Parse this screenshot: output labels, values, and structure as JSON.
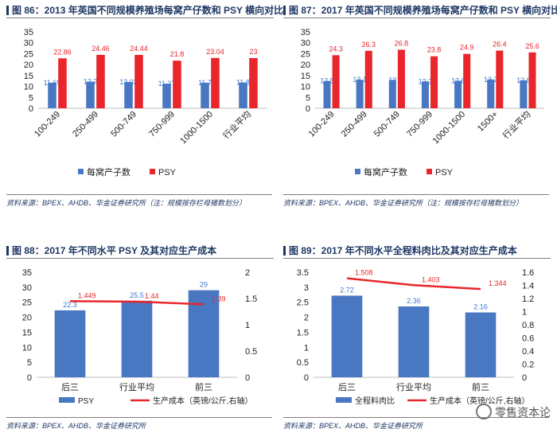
{
  "colors": {
    "blue": "#4a77c2",
    "red": "#e8262b",
    "title": "#1f3864",
    "pct_blue": "#3a7ad1"
  },
  "watermark": {
    "text": "零售资本论",
    "icon": "wechat-icon"
  },
  "panels": [
    {
      "title": "图 86：2013 年英国不同规模养殖场每窝产仔数和 PSY 横向对比",
      "source": "资料来源：BPEX、AHDB、华金证券研究所（注：规模按存栏母猪数划分）"
    },
    {
      "title": "图 87：2017 年英国不同规模养殖场每窝产仔数和 PSY 横向对比",
      "source": "资料来源：BPEX、AHDB、华金证券研究所（注：规模按存栏母猪数划分）"
    },
    {
      "title": "图 88：2017 年不同水平 PSY 及其对应生产成本",
      "source": "资料来源：BPEX、AHDB、华金证券研究所"
    },
    {
      "title": "图 89：2017 年不同水平全程料肉比及其对应生产成本",
      "source": "资料来源：BPEX、AHDB、华金证券研究所"
    }
  ],
  "chart_data": [
    {
      "type": "bar",
      "categories": [
        "100-249",
        "250-499",
        "500-749",
        "750-999",
        "1000-1500",
        "行业平均"
      ],
      "series": [
        {
          "name": "每窝产子数",
          "values": [
            11.69,
            12.2,
            12.02,
            11.27,
            11.7,
            11.8
          ],
          "labels": [
            "11.69",
            "12.2",
            "12.02",
            "11.27",
            "11.7",
            "11.8"
          ],
          "color": "#4a77c2"
        },
        {
          "name": "PSY",
          "values": [
            22.86,
            24.46,
            24.44,
            21.8,
            23.04,
            23
          ],
          "labels": [
            "22.86",
            "24.46",
            "24.44",
            "21.8",
            "23.04",
            "23"
          ],
          "color": "#e8262b"
        }
      ],
      "y_ticks": [
        "0",
        "5",
        "10",
        "15",
        "20",
        "25",
        "30",
        "35"
      ],
      "ylim": [
        0,
        35
      ],
      "legend": "bottom",
      "grid": false
    },
    {
      "type": "bar",
      "categories": [
        "100-249",
        "250-499",
        "500-749",
        "750-999",
        "1000-1500",
        "1500+",
        "行业平均"
      ],
      "series": [
        {
          "name": "每窝产子数",
          "values": [
            12.5,
            13.1,
            13,
            12.3,
            12.6,
            13.2,
            12.8
          ],
          "labels": [
            "12.5",
            "13.1",
            "13",
            "12.3",
            "12.6",
            "13.2",
            "12.8"
          ],
          "color": "#4a77c2"
        },
        {
          "name": "PSY",
          "values": [
            24.3,
            26.3,
            26.8,
            23.8,
            24.9,
            26.4,
            25.6
          ],
          "labels": [
            "24.3",
            "26.3",
            "26.8",
            "23.8",
            "24.9",
            "26.4",
            "25.6"
          ],
          "color": "#e8262b"
        }
      ],
      "y_ticks": [
        "0",
        "5",
        "10",
        "15",
        "20",
        "25",
        "30",
        "35"
      ],
      "ylim": [
        0,
        35
      ],
      "legend": "bottom",
      "grid": false
    },
    {
      "type": "bar",
      "categories": [
        "后三",
        "行业平均",
        "前三"
      ],
      "series": [
        {
          "name": "PSY",
          "kind": "bar",
          "axis": "left",
          "values": [
            22.3,
            25.5,
            29
          ],
          "labels": [
            "22.3",
            "25.5",
            "29"
          ],
          "color": "#4a77c2"
        },
        {
          "name": "生产成本（英镑/公斤,右轴）",
          "kind": "line",
          "axis": "right",
          "values": [
            1.449,
            1.44,
            1.39
          ],
          "labels": [
            "1.449",
            "1.44",
            "1.39"
          ],
          "color": "#e8262b"
        }
      ],
      "y_ticks": [
        "0",
        "5",
        "10",
        "15",
        "20",
        "25",
        "30",
        "35"
      ],
      "y2_ticks": [
        "0",
        "0.5",
        "1",
        "1.5",
        "2"
      ],
      "ylim": [
        0,
        35
      ],
      "y2lim": [
        0,
        2
      ],
      "legend": "bottom",
      "grid": false
    },
    {
      "type": "bar",
      "categories": [
        "后三",
        "行业平均",
        "前三"
      ],
      "series": [
        {
          "name": "全程料肉比",
          "kind": "bar",
          "axis": "left",
          "values": [
            2.72,
            2.36,
            2.16
          ],
          "labels": [
            "2.72",
            "2.36",
            "2.16"
          ],
          "color": "#4a77c2"
        },
        {
          "name": "生产成本（英镑/公斤,右轴）",
          "kind": "line",
          "axis": "right",
          "values": [
            1.508,
            1.403,
            1.344
          ],
          "labels": [
            "1.508",
            "1.403",
            "1.344"
          ],
          "color": "#e8262b"
        }
      ],
      "y_ticks": [
        "0",
        "0.5",
        "1",
        "1.5",
        "2",
        "2.5",
        "3",
        "3.5"
      ],
      "y2_ticks": [
        "0",
        "0.2",
        "0.4",
        "0.6",
        "0.8",
        "1",
        "1.2",
        "1.4",
        "1.6"
      ],
      "ylim": [
        0,
        3.5
      ],
      "y2lim": [
        0,
        1.6
      ],
      "legend": "bottom",
      "grid": false
    }
  ]
}
